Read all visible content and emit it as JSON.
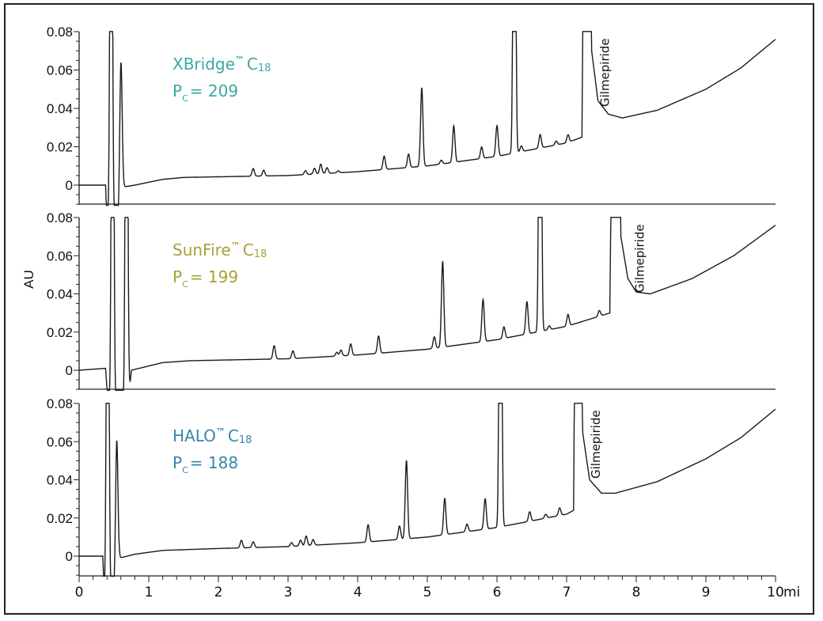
{
  "chart_data": {
    "type": "line",
    "ylabel": "AU",
    "xlabel": "",
    "x_unit": "mi",
    "xlim": [
      0,
      10
    ],
    "ylim": [
      -0.01,
      0.08
    ],
    "x_ticks": [
      "0",
      "1",
      "2",
      "3",
      "4",
      "5",
      "6",
      "7",
      "8",
      "9",
      "10"
    ],
    "y_ticks": [
      "0",
      "0.02",
      "0.04",
      "0.06",
      "0.08"
    ],
    "grid": false,
    "panels": [
      {
        "column": "XBridge™ C18",
        "column_name": "XBridge",
        "tm": "™",
        "c": "C",
        "sub": "18",
        "pc_label": "P",
        "pc_sub": "C",
        "pc_value": "= 209",
        "color": "#3aa9a0",
        "annotation": "Gilmepiride",
        "annotation_x": 7.55,
        "baseline": [
          [
            0,
            0
          ],
          [
            0.38,
            0
          ],
          [
            0.4,
            -0.02
          ],
          [
            0.56,
            -0.02
          ],
          [
            0.63,
            -0.001
          ],
          [
            0.8,
            0.0
          ],
          [
            1.2,
            0.003
          ],
          [
            1.5,
            0.004
          ],
          [
            3,
            0.005
          ],
          [
            4,
            0.007
          ],
          [
            5,
            0.01
          ],
          [
            6,
            0.015
          ],
          [
            7,
            0.022
          ],
          [
            7.22,
            0.025
          ],
          [
            7.28,
            0.3
          ],
          [
            7.36,
            0.07
          ],
          [
            7.45,
            0.044
          ],
          [
            7.6,
            0.037
          ],
          [
            7.8,
            0.035
          ],
          [
            8.3,
            0.039
          ],
          [
            9,
            0.05
          ],
          [
            9.5,
            0.061
          ],
          [
            10,
            0.076
          ]
        ],
        "peaks": [
          [
            0.46,
            0.3
          ],
          [
            0.6,
            0.073
          ],
          [
            2.5,
            0.004
          ],
          [
            2.65,
            0.003
          ],
          [
            3.25,
            0.002
          ],
          [
            3.38,
            0.003
          ],
          [
            3.47,
            0.005
          ],
          [
            3.56,
            0.003
          ],
          [
            3.72,
            0.001
          ],
          [
            4.38,
            0.007
          ],
          [
            4.73,
            0.007
          ],
          [
            4.92,
            0.041
          ],
          [
            5.2,
            0.002
          ],
          [
            5.38,
            0.019
          ],
          [
            5.78,
            0.006
          ],
          [
            6.0,
            0.016
          ],
          [
            6.25,
            0.3
          ],
          [
            6.35,
            0.003
          ],
          [
            6.62,
            0.007
          ],
          [
            6.85,
            0.002
          ],
          [
            7.02,
            0.004
          ]
        ]
      },
      {
        "column": "SunFire™ C18",
        "column_name": "SunFire",
        "tm": "™",
        "c": "C",
        "sub": "18",
        "pc_label": "P",
        "pc_sub": "C",
        "pc_value": "= 199",
        "color": "#a7a238",
        "annotation": "Gilmepiride",
        "annotation_x": 8.05,
        "baseline": [
          [
            0,
            0
          ],
          [
            0.38,
            0.001
          ],
          [
            0.42,
            -0.02
          ],
          [
            0.7,
            -0.02
          ],
          [
            0.75,
            0.0
          ],
          [
            1.2,
            0.004
          ],
          [
            1.6,
            0.005
          ],
          [
            3,
            0.006
          ],
          [
            4,
            0.008
          ],
          [
            5,
            0.011
          ],
          [
            6,
            0.016
          ],
          [
            7,
            0.023
          ],
          [
            7.62,
            0.03
          ],
          [
            7.7,
            0.3
          ],
          [
            7.78,
            0.07
          ],
          [
            7.88,
            0.048
          ],
          [
            8.0,
            0.041
          ],
          [
            8.2,
            0.04
          ],
          [
            8.8,
            0.048
          ],
          [
            9.4,
            0.06
          ],
          [
            10,
            0.076
          ]
        ],
        "peaks": [
          [
            0.48,
            0.3
          ],
          [
            0.68,
            0.3
          ],
          [
            2.8,
            0.007
          ],
          [
            3.07,
            0.004
          ],
          [
            3.7,
            0.002
          ],
          [
            3.76,
            0.003
          ],
          [
            3.9,
            0.006
          ],
          [
            4.3,
            0.009
          ],
          [
            5.1,
            0.006
          ],
          [
            5.22,
            0.045
          ],
          [
            5.8,
            0.022
          ],
          [
            6.1,
            0.006
          ],
          [
            6.43,
            0.017
          ],
          [
            6.62,
            0.3
          ],
          [
            6.75,
            0.002
          ],
          [
            7.02,
            0.006
          ],
          [
            7.47,
            0.003
          ]
        ]
      },
      {
        "column": "HALO™ C18",
        "column_name": "HALO",
        "tm": "™",
        "c": "C",
        "sub": "18",
        "pc_label": "P",
        "pc_sub": "C",
        "pc_value": "= 188",
        "color": "#3587ac",
        "annotation": "Gilmepiride",
        "annotation_x": 7.42,
        "baseline": [
          [
            0,
            0
          ],
          [
            0.34,
            0
          ],
          [
            0.36,
            -0.02
          ],
          [
            0.5,
            -0.02
          ],
          [
            0.58,
            -0.001
          ],
          [
            0.8,
            0.001
          ],
          [
            1.2,
            0.003
          ],
          [
            2,
            0.004
          ],
          [
            3,
            0.005
          ],
          [
            4,
            0.007
          ],
          [
            5,
            0.01
          ],
          [
            6,
            0.015
          ],
          [
            7,
            0.022
          ],
          [
            7.1,
            0.024
          ],
          [
            7.15,
            0.3
          ],
          [
            7.23,
            0.065
          ],
          [
            7.33,
            0.04
          ],
          [
            7.5,
            0.033
          ],
          [
            7.7,
            0.033
          ],
          [
            8.3,
            0.039
          ],
          [
            9,
            0.051
          ],
          [
            9.5,
            0.062
          ],
          [
            10,
            0.077
          ]
        ],
        "peaks": [
          [
            0.41,
            0.3
          ],
          [
            0.54,
            0.071
          ],
          [
            2.33,
            0.004
          ],
          [
            2.5,
            0.003
          ],
          [
            3.05,
            0.002
          ],
          [
            3.18,
            0.003
          ],
          [
            3.26,
            0.005
          ],
          [
            3.36,
            0.003
          ],
          [
            4.15,
            0.009
          ],
          [
            4.6,
            0.007
          ],
          [
            4.7,
            0.041
          ],
          [
            5.25,
            0.019
          ],
          [
            5.57,
            0.004
          ],
          [
            5.83,
            0.016
          ],
          [
            6.05,
            0.3
          ],
          [
            6.47,
            0.005
          ],
          [
            6.7,
            0.002
          ],
          [
            6.9,
            0.004
          ]
        ]
      }
    ]
  }
}
